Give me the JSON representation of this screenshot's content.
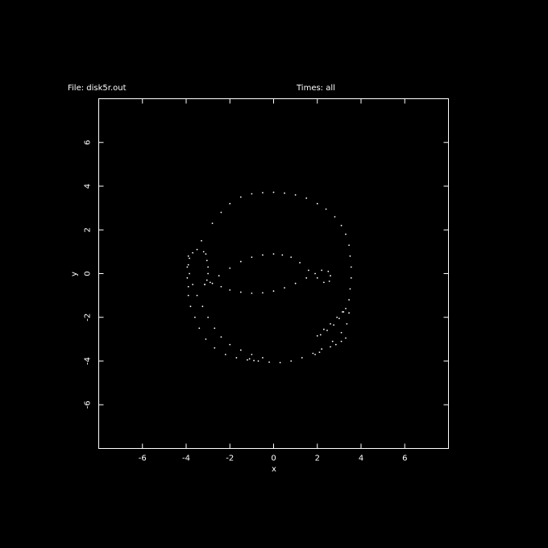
{
  "header": {
    "file_label": "File: disk5r.out",
    "times_label": "Times: all"
  },
  "colors": {
    "background": "#000000",
    "foreground": "#ffffff"
  },
  "chart_data": {
    "type": "scatter",
    "xlabel": "x",
    "ylabel": "y",
    "xlim": [
      -8,
      8
    ],
    "ylim": [
      -8,
      8
    ],
    "xticks": [
      -6,
      -4,
      -2,
      0,
      2,
      4,
      6
    ],
    "yticks": [
      -6,
      -4,
      -2,
      0,
      2,
      4,
      6
    ],
    "grid": false,
    "series": [
      {
        "points": [
          [
            -0.5,
            3.7
          ],
          [
            0.0,
            3.72
          ],
          [
            0.5,
            3.68
          ],
          [
            1.0,
            3.6
          ],
          [
            1.5,
            3.45
          ],
          [
            2.0,
            3.2
          ],
          [
            2.4,
            2.95
          ],
          [
            2.8,
            2.6
          ],
          [
            3.1,
            2.2
          ],
          [
            3.3,
            1.8
          ],
          [
            3.45,
            1.3
          ],
          [
            3.5,
            0.8
          ],
          [
            3.55,
            0.3
          ],
          [
            3.55,
            -0.2
          ],
          [
            3.5,
            -0.7
          ],
          [
            3.45,
            -1.2
          ],
          [
            -1.0,
            3.65
          ],
          [
            -1.5,
            3.5
          ],
          [
            -2.0,
            3.2
          ],
          [
            -2.4,
            2.8
          ],
          [
            -2.8,
            2.3
          ],
          [
            -3.3,
            1.5
          ],
          [
            -3.9,
            -1.0
          ],
          [
            -3.8,
            -1.5
          ],
          [
            -3.6,
            -2.0
          ],
          [
            -3.4,
            -2.5
          ],
          [
            -3.1,
            -3.0
          ],
          [
            -2.7,
            -3.4
          ],
          [
            -2.2,
            -3.7
          ],
          [
            -1.7,
            -3.85
          ],
          [
            -1.2,
            -3.95
          ],
          [
            -0.7,
            -4.0
          ],
          [
            -0.2,
            -4.05
          ],
          [
            0.3,
            -4.07
          ],
          [
            0.8,
            -4.0
          ],
          [
            1.3,
            -3.85
          ],
          [
            1.8,
            -3.65
          ],
          [
            2.2,
            -3.45
          ],
          [
            2.7,
            -3.1
          ],
          [
            3.1,
            -2.7
          ],
          [
            3.35,
            -2.3
          ],
          [
            3.45,
            -1.8
          ],
          [
            -3.9,
            0.8
          ],
          [
            -3.95,
            0.3
          ],
          [
            -3.95,
            -0.2
          ],
          [
            -3.9,
            -0.6
          ],
          [
            -3.2,
            1.0
          ],
          [
            -3.5,
            1.1
          ],
          [
            -3.7,
            0.95
          ],
          [
            -3.85,
            0.7
          ],
          [
            -3.9,
            0.4
          ],
          [
            -3.85,
            0.0
          ],
          [
            -3.7,
            -0.5
          ],
          [
            -3.5,
            -1.0
          ],
          [
            -3.25,
            -1.5
          ],
          [
            -3.0,
            -2.0
          ],
          [
            -2.7,
            -2.5
          ],
          [
            -2.4,
            -2.9
          ],
          [
            -2.0,
            -3.25
          ],
          [
            -1.5,
            -3.5
          ],
          [
            -1.0,
            -3.7
          ],
          [
            -0.5,
            -3.85
          ],
          [
            -3.1,
            0.9
          ],
          [
            -3.05,
            0.6
          ],
          [
            -3.0,
            0.3
          ],
          [
            -3.0,
            0.0
          ],
          [
            -3.05,
            -0.3
          ],
          [
            -3.15,
            -0.5
          ],
          [
            -3.15,
            -0.5
          ],
          [
            -2.8,
            -0.45
          ],
          [
            -2.4,
            -0.6
          ],
          [
            -2.0,
            -0.75
          ],
          [
            -1.5,
            -0.85
          ],
          [
            -1.0,
            -0.9
          ],
          [
            -0.5,
            -0.88
          ],
          [
            0.0,
            -0.8
          ],
          [
            0.5,
            -0.65
          ],
          [
            1.0,
            -0.45
          ],
          [
            1.5,
            -0.2
          ],
          [
            1.9,
            0.0
          ],
          [
            2.2,
            0.15
          ],
          [
            2.5,
            0.1
          ],
          [
            2.6,
            -0.1
          ],
          [
            2.55,
            -0.35
          ],
          [
            2.3,
            -0.4
          ],
          [
            2.0,
            -0.2
          ],
          [
            1.6,
            0.15
          ],
          [
            1.2,
            0.5
          ],
          [
            0.8,
            0.75
          ],
          [
            0.4,
            0.85
          ],
          [
            0.0,
            0.9
          ],
          [
            -0.5,
            0.85
          ],
          [
            -1.0,
            0.75
          ],
          [
            -1.5,
            0.55
          ],
          [
            -2.0,
            0.25
          ],
          [
            -2.5,
            -0.1
          ],
          [
            -2.9,
            -0.4
          ],
          [
            2.0,
            -2.85
          ],
          [
            2.3,
            -2.55
          ],
          [
            2.6,
            -2.3
          ],
          [
            2.9,
            -2.0
          ],
          [
            3.15,
            -1.75
          ],
          [
            3.3,
            -1.6
          ],
          [
            3.2,
            -1.75
          ],
          [
            3.0,
            -2.05
          ],
          [
            2.75,
            -2.35
          ],
          [
            2.45,
            -2.6
          ],
          [
            2.15,
            -2.8
          ],
          [
            3.3,
            -2.95
          ],
          [
            3.1,
            -3.1
          ],
          [
            2.85,
            -3.25
          ],
          [
            2.6,
            -3.35
          ],
          [
            1.9,
            -3.7
          ],
          [
            2.1,
            -3.6
          ],
          [
            -1.1,
            -3.9
          ],
          [
            -0.9,
            -3.98
          ]
        ]
      }
    ]
  }
}
